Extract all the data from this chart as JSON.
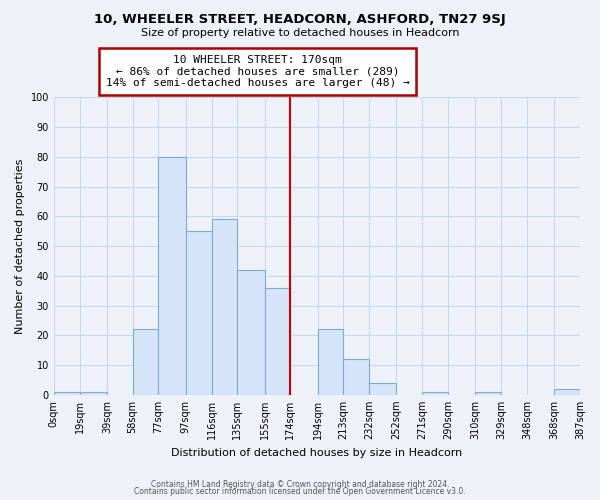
{
  "title": "10, WHEELER STREET, HEADCORN, ASHFORD, TN27 9SJ",
  "subtitle": "Size of property relative to detached houses in Headcorn",
  "xlabel": "Distribution of detached houses by size in Headcorn",
  "ylabel": "Number of detached properties",
  "bar_edges": [
    0,
    19,
    39,
    58,
    77,
    97,
    116,
    135,
    155,
    174,
    194,
    213,
    232,
    252,
    271,
    290,
    310,
    329,
    348,
    368,
    387
  ],
  "bar_heights": [
    1,
    1,
    0,
    22,
    80,
    55,
    59,
    42,
    36,
    0,
    22,
    12,
    4,
    0,
    1,
    0,
    1,
    0,
    0,
    2
  ],
  "bar_color": "#d6e4f7",
  "bar_edge_color": "#7aadd4",
  "vline_x": 174,
  "vline_color": "#cc0000",
  "annotation_title": "10 WHEELER STREET: 170sqm",
  "annotation_line1": "← 86% of detached houses are smaller (289)",
  "annotation_line2": "14% of semi-detached houses are larger (48) →",
  "annotation_box_color": "#ffffff",
  "annotation_box_edge": "#aa0000",
  "tick_labels": [
    "0sqm",
    "19sqm",
    "39sqm",
    "58sqm",
    "77sqm",
    "97sqm",
    "116sqm",
    "135sqm",
    "155sqm",
    "174sqm",
    "194sqm",
    "213sqm",
    "232sqm",
    "252sqm",
    "271sqm",
    "290sqm",
    "310sqm",
    "329sqm",
    "348sqm",
    "368sqm",
    "387sqm"
  ],
  "ylim": [
    0,
    100
  ],
  "yticks": [
    0,
    10,
    20,
    30,
    40,
    50,
    60,
    70,
    80,
    90,
    100
  ],
  "footer1": "Contains HM Land Registry data © Crown copyright and database right 2024.",
  "footer2": "Contains public sector information licensed under the Open Government Licence v3.0.",
  "background_color": "#eef2f8",
  "grid_color": "#c8d8ec",
  "plot_bg_color": "#eef2f8"
}
